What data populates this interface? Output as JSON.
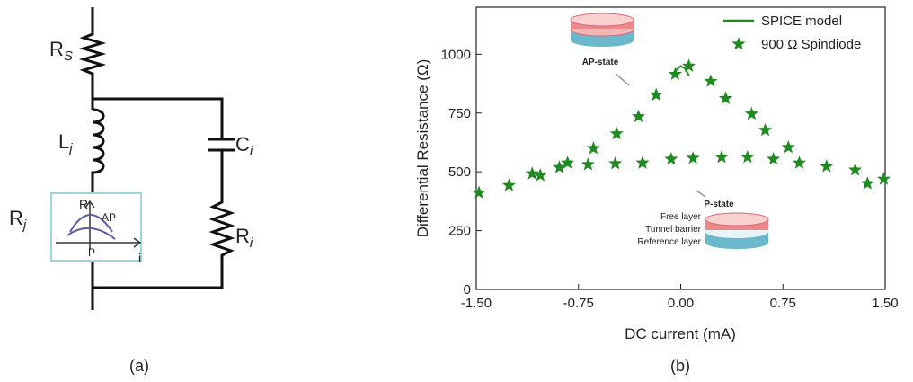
{
  "circuit": {
    "labels": [
      {
        "main": "R",
        "sub": "S"
      },
      {
        "main": "L",
        "sub": "j"
      },
      {
        "main": "C",
        "sub": "i"
      },
      {
        "main": "R",
        "sub": "j"
      },
      {
        "main": "R",
        "sub": "i"
      }
    ],
    "inset": {
      "axis_y": "R",
      "axis_x": "i",
      "upper": "AP",
      "lower": "P"
    }
  },
  "captions": [
    "(a)",
    "(b)"
  ],
  "chart_data": {
    "type": "scatter",
    "x_label": "DC current (mA)",
    "y_label": "Differential Resistance (Ω)",
    "xlim": [
      -1.5,
      1.5
    ],
    "ylim": [
      0,
      1200
    ],
    "xticks": [
      {
        "value": -1.5,
        "label": "-1.50"
      },
      -0.75,
      {
        "value": 0,
        "label": "0.00"
      },
      0.75,
      {
        "value": 1.5,
        "label": "1.50"
      }
    ],
    "yticks": [
      0,
      250,
      500,
      750,
      1000
    ],
    "legend": "upper right",
    "annotations": [
      "AP-state",
      "P-state",
      "Free layer",
      "Tunnel barrier",
      "Reference layer"
    ],
    "series": [
      {
        "name": "SPICE model",
        "style": "line",
        "color": "#1f8a1f",
        "x": [
          -0.06,
          -0.03,
          0,
          0.03,
          0.06
        ],
        "values": [
          900,
          935,
          950,
          940,
          910
        ]
      },
      {
        "name": "900 Ω Spindiode",
        "style": "marker",
        "color": "#1f8a1f",
        "x": [
          -1.48,
          -1.26,
          -1.09,
          -1.03,
          -0.89,
          -0.83,
          -0.68,
          -0.64,
          -0.48,
          -0.47,
          -0.31,
          -0.28,
          -0.18,
          -0.07,
          -0.04,
          0.06,
          0.09,
          0.22,
          0.3,
          0.33,
          0.49,
          0.52,
          0.62,
          0.68,
          0.79,
          0.87,
          1.07,
          1.28,
          1.37,
          1.49
        ],
        "values": [
          411,
          442,
          492,
          485,
          519,
          538,
          531,
          600,
          535,
          662,
          735,
          538,
          827,
          554,
          915,
          950,
          558,
          885,
          562,
          812,
          562,
          746,
          677,
          554,
          604,
          538,
          523,
          508,
          450,
          469
        ]
      }
    ]
  }
}
